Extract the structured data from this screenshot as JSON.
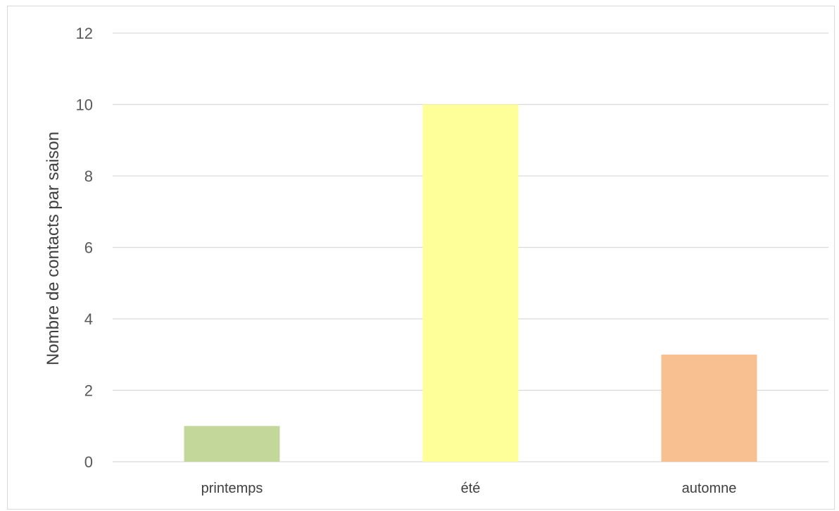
{
  "chart_data": {
    "type": "bar",
    "title": "",
    "xlabel": "",
    "ylabel": "Nombre de contacts par saison",
    "ylim": [
      0,
      12
    ],
    "yticks": [
      0,
      2,
      4,
      6,
      8,
      10,
      12
    ],
    "categories": [
      "printemps",
      "été",
      "automne"
    ],
    "values": [
      1,
      10,
      3
    ],
    "colors": [
      "#c4d79b",
      "#ffff99",
      "#f8c090"
    ],
    "grid": true,
    "legend": "none"
  }
}
